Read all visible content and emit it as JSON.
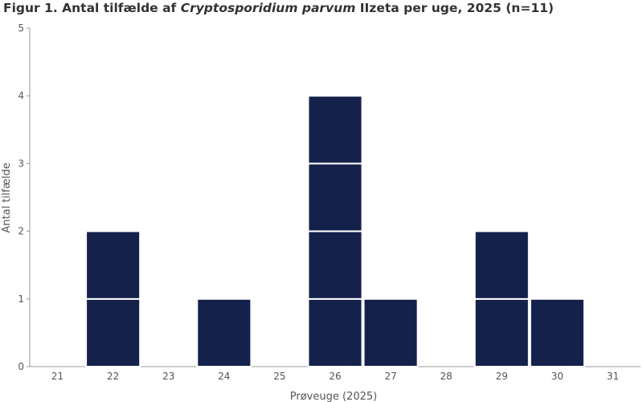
{
  "chart_data": {
    "type": "bar",
    "title_prefix": "Figur 1. Antal tilfælde af ",
    "title_italic": "Cryptosporidium parvum",
    "title_suffix": " IIzeta per uge, 2025 (n=11)",
    "xlabel": "Prøveuge (2025)",
    "ylabel": "Antal tilfælde",
    "categories": [
      "21",
      "22",
      "23",
      "24",
      "25",
      "26",
      "27",
      "28",
      "29",
      "30",
      "31"
    ],
    "values": [
      0,
      2,
      0,
      1,
      0,
      4,
      1,
      0,
      2,
      1,
      0
    ],
    "ylim": [
      0,
      5
    ],
    "yticks": [
      0,
      1,
      2,
      3,
      4,
      5
    ],
    "grid": false,
    "bar_style": "stacked unit blocks",
    "bar_color": "#14214b"
  }
}
